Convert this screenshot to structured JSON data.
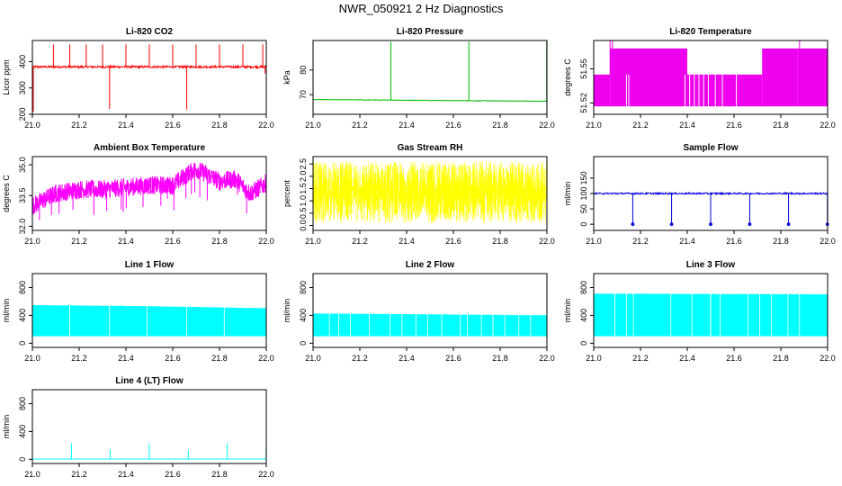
{
  "title": "NWR_050921 2 Hz Diagnostics",
  "chart_data": [
    {
      "type": "line",
      "title": "Li-820 CO2",
      "ylabel": "Licor ppm",
      "color": "#ff0000",
      "xlim": [
        21.0,
        22.0
      ],
      "ylim": [
        200,
        480
      ],
      "xticks": [
        "21.0",
        "21.2",
        "21.4",
        "21.6",
        "21.8",
        "22.0"
      ],
      "yticks": [
        "200",
        "300",
        "400"
      ],
      "baseline": 380,
      "noise": 4,
      "spikes": [
        [
          21.004,
          210
        ],
        [
          21.09,
          465
        ],
        [
          21.16,
          465
        ],
        [
          21.23,
          465
        ],
        [
          21.3,
          465
        ],
        [
          21.33,
          220
        ],
        [
          21.4,
          465
        ],
        [
          21.5,
          465
        ],
        [
          21.6,
          465
        ],
        [
          21.66,
          218
        ],
        [
          21.7,
          465
        ],
        [
          21.8,
          465
        ],
        [
          21.9,
          465
        ],
        [
          21.985,
          465
        ],
        [
          21.995,
          355
        ]
      ]
    },
    {
      "type": "line",
      "title": "Li-820 Pressure",
      "ylabel": "kPa",
      "color": "#00bb00",
      "xlim": [
        21.0,
        22.0
      ],
      "ylim": [
        62,
        92
      ],
      "xticks": [
        "21.0",
        "21.2",
        "21.4",
        "21.6",
        "21.8",
        "22.0"
      ],
      "yticks": [
        "70",
        "80"
      ],
      "baseline": 68.0,
      "drift": -0.7,
      "noise": 0.1,
      "spikes": [
        [
          21.0,
          87
        ],
        [
          21.333,
          91.5
        ],
        [
          21.666,
          91.5
        ],
        [
          21.999,
          91.5
        ]
      ]
    },
    {
      "type": "band",
      "title": "Li-820 Temperature",
      "ylabel": "degrees C",
      "color": "#ee00ee",
      "xlim": [
        21.0,
        22.0
      ],
      "ylim": [
        51.51,
        51.575
      ],
      "xticks": [
        "21.0",
        "21.2",
        "21.4",
        "21.6",
        "21.8",
        "22.0"
      ],
      "yticks": [
        "51.52",
        "51.55"
      ],
      "bands": [
        [
          21.0,
          21.07,
          51.517,
          51.545
        ],
        [
          21.07,
          21.4,
          51.517,
          51.568
        ],
        [
          21.4,
          21.72,
          51.517,
          51.545
        ],
        [
          21.72,
          21.87,
          51.517,
          51.568
        ],
        [
          21.87,
          22.0,
          51.517,
          51.568
        ]
      ],
      "gaps": [
        21.14,
        21.15,
        21.39,
        21.41,
        21.43,
        21.45,
        21.47,
        21.49,
        21.52,
        21.55,
        21.61
      ],
      "spikes": [
        [
          21.07,
          51.575
        ],
        [
          21.08,
          51.575
        ],
        [
          21.88,
          51.575
        ]
      ]
    },
    {
      "type": "line",
      "title": "Ambient Box Temperature",
      "ylabel": "degrees C",
      "color": "#ff00ff",
      "xlim": [
        21.0,
        22.0
      ],
      "ylim": [
        31.8,
        35.4
      ],
      "xticks": [
        "21.0",
        "21.2",
        "21.4",
        "21.6",
        "21.8",
        "22.0"
      ],
      "yticks": [
        "32.0",
        "33.5",
        "35.0"
      ],
      "curve": [
        [
          21.0,
          33.0
        ],
        [
          21.1,
          33.6
        ],
        [
          21.2,
          33.8
        ],
        [
          21.3,
          33.8
        ],
        [
          21.4,
          33.9
        ],
        [
          21.5,
          34.0
        ],
        [
          21.6,
          34.0
        ],
        [
          21.67,
          34.6
        ],
        [
          21.7,
          34.8
        ],
        [
          21.75,
          34.5
        ],
        [
          21.8,
          34.2
        ],
        [
          21.87,
          34.3
        ],
        [
          21.93,
          33.6
        ],
        [
          22.0,
          34.1
        ]
      ],
      "noise": 0.45,
      "dips": 20,
      "dipdepth": 1.3
    },
    {
      "type": "noise",
      "title": "Gas Stream RH",
      "ylabel": "percent",
      "color": "#ffff00",
      "xlim": [
        21.0,
        22.0
      ],
      "ylim": [
        -0.2,
        2.8
      ],
      "xticks": [
        "21.0",
        "21.2",
        "21.4",
        "21.6",
        "21.8",
        "22.0"
      ],
      "yticks": [
        "0.0",
        "0.5",
        "1.0",
        "1.5",
        "2.0",
        "2.5"
      ],
      "low": 0.1,
      "high": 2.6
    },
    {
      "type": "line",
      "title": "Sample Flow",
      "ylabel": "ml/min",
      "color": "#0000dd",
      "xlim": [
        21.0,
        22.0
      ],
      "ylim": [
        -20,
        220
      ],
      "xticks": [
        "21.0",
        "21.2",
        "21.4",
        "21.6",
        "21.8",
        "22.0"
      ],
      "yticks": [
        "0",
        "50",
        "100",
        "150"
      ],
      "baseline": 100,
      "noise": 2.5,
      "dropouts": [
        21.167,
        21.333,
        21.5,
        21.667,
        21.833,
        21.999
      ]
    },
    {
      "type": "square",
      "title": "Line 1 Flow",
      "ylabel": "ml/min",
      "color": "#00ffff",
      "xlim": [
        21.0,
        22.0
      ],
      "ylim": [
        -60,
        1000
      ],
      "xticks": [
        "21.0",
        "21.2",
        "21.4",
        "21.6",
        "21.8",
        "22.0"
      ],
      "yticks": [
        "0",
        "400",
        "800"
      ],
      "low": 100,
      "high": [
        [
          21.0,
          545
        ],
        [
          21.5,
          530
        ],
        [
          22.0,
          500
        ]
      ],
      "gaps": [
        21.16,
        21.33,
        21.49,
        21.66,
        21.82
      ]
    },
    {
      "type": "square",
      "title": "Line 2 Flow",
      "ylabel": "ml/min",
      "color": "#00ffff",
      "xlim": [
        21.0,
        22.0
      ],
      "ylim": [
        -60,
        1000
      ],
      "xticks": [
        "21.0",
        "21.2",
        "21.4",
        "21.6",
        "21.8",
        "22.0"
      ],
      "yticks": [
        "0",
        "400",
        "800"
      ],
      "low": 100,
      "high": [
        [
          21.0,
          425
        ],
        [
          22.0,
          400
        ]
      ],
      "gaps": [
        21.07,
        21.11,
        21.16,
        21.24,
        21.33,
        21.38,
        21.44,
        21.49,
        21.55,
        21.63,
        21.66,
        21.72,
        21.77,
        21.82,
        21.88,
        21.93
      ]
    },
    {
      "type": "square",
      "title": "Line 3 Flow",
      "ylabel": "ml/min",
      "color": "#00ffff",
      "xlim": [
        21.0,
        22.0
      ],
      "ylim": [
        -60,
        1000
      ],
      "xticks": [
        "21.0",
        "21.2",
        "21.4",
        "21.6",
        "21.8",
        "22.0"
      ],
      "yticks": [
        "0",
        "400",
        "800"
      ],
      "low": 100,
      "high": [
        [
          21.0,
          710
        ],
        [
          22.0,
          700
        ]
      ],
      "gaps": [
        21.09,
        21.14,
        21.17,
        21.33,
        21.42,
        21.5,
        21.54,
        21.66,
        21.71,
        21.76,
        21.83,
        21.88
      ]
    },
    {
      "type": "line",
      "title": "Line 4 (LT) Flow",
      "ylabel": "ml/min",
      "color": "#00ffff",
      "xlim": [
        21.0,
        22.0
      ],
      "ylim": [
        -60,
        1000
      ],
      "xticks": [
        "21.0",
        "21.2",
        "21.4",
        "21.6",
        "21.8",
        "22.0"
      ],
      "yticks": [
        "0",
        "400",
        "800"
      ],
      "baseline": 5,
      "noise": 0,
      "spikes": [
        [
          21.167,
          230
        ],
        [
          21.333,
          140
        ],
        [
          21.5,
          230
        ],
        [
          21.667,
          140
        ],
        [
          21.833,
          230
        ],
        [
          21.999,
          140
        ]
      ]
    }
  ]
}
